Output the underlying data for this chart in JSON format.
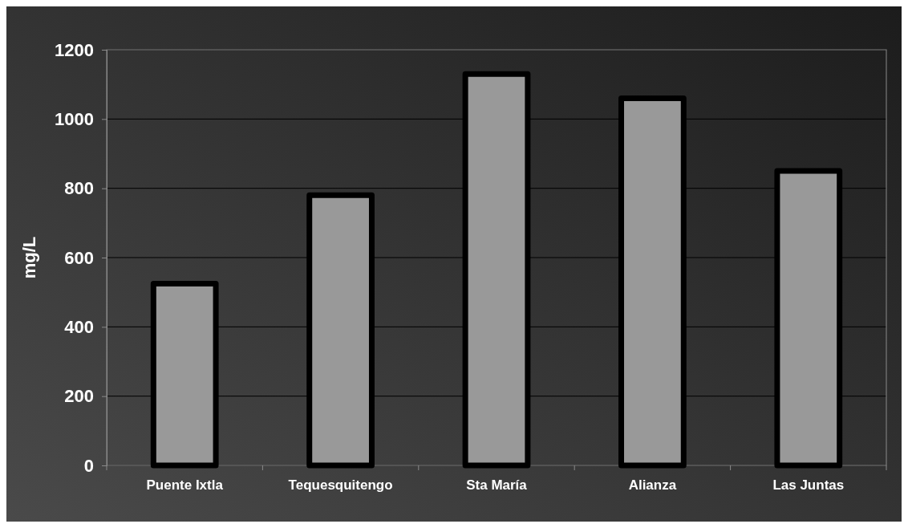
{
  "chart_data": {
    "type": "bar",
    "ylabel": "mg/L",
    "categories": [
      "Puente Ixtla",
      "Tequesquitengo",
      "Sta María",
      "Alianza",
      "Las Juntas"
    ],
    "values": [
      525,
      780,
      1130,
      1060,
      850
    ],
    "color": "#999999",
    "ylim": [
      0,
      1200
    ],
    "yticks": [
      0,
      200,
      400,
      600,
      800,
      1000,
      1200
    ],
    "grid": "y"
  }
}
